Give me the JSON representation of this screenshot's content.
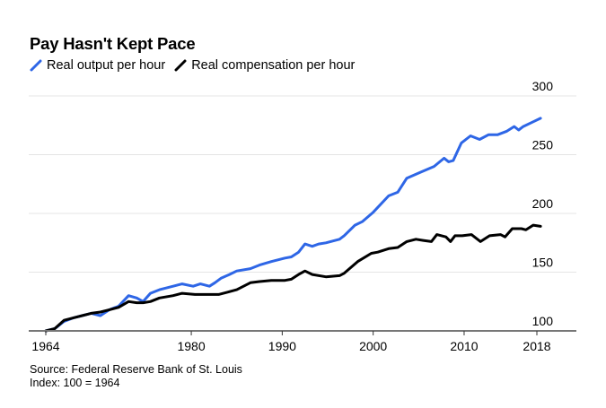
{
  "chart_data": {
    "type": "line",
    "title": "Pay Hasn't Kept Pace",
    "xlabel": "",
    "ylabel": "",
    "xlim": [
      1962.1,
      2022
    ],
    "ylim": [
      100,
      300
    ],
    "x_ticks": [
      1964,
      1980,
      1990,
      2000,
      2010,
      2018
    ],
    "x_tick_labels": [
      "1964",
      "1980",
      "1990",
      "2000",
      "2010",
      "2018"
    ],
    "y_ticks": [
      100,
      150,
      200,
      250,
      300
    ],
    "y_tick_labels": [
      "100",
      "150",
      "200",
      "250",
      "300"
    ],
    "grid": true,
    "y_axis_position": "right",
    "legend_position": "top-left",
    "series": [
      {
        "name": "Real output per hour",
        "color": "#2e66e6",
        "x": [
          1964,
          1965,
          1966,
          1967,
          1968,
          1969,
          1970,
          1971,
          1972,
          1973.1,
          1974,
          1974.7,
          1975.5,
          1976.5,
          1978,
          1979,
          1980.2,
          1981,
          1982,
          1982.6,
          1983.3,
          1984.2,
          1985,
          1986.5,
          1987.5,
          1988.8,
          1990.3,
          1991,
          1991.8,
          1992.5,
          1993.3,
          1994,
          1994.8,
          1996.3,
          1996.8,
          1998,
          1998.8,
          2000,
          2001.7,
          2002.7,
          2003.7,
          2005.2,
          2006.7,
          2007.8,
          2008.3,
          2008.8,
          2009.7,
          2010.7,
          2011.7,
          2012.7,
          2013.7,
          2014.7,
          2015.5,
          2016,
          2016.5,
          2017.6,
          2018.4
        ],
        "values": [
          100,
          102,
          108,
          111,
          113,
          115,
          113,
          118,
          121,
          130,
          128,
          125,
          132,
          135,
          138,
          140,
          138,
          140,
          138,
          141,
          145,
          148,
          151,
          153,
          156,
          159,
          162,
          163,
          167,
          174,
          172,
          174,
          175,
          178,
          181,
          190,
          193,
          201,
          215,
          218,
          230,
          235,
          240,
          247,
          244,
          245,
          260,
          266,
          263,
          267,
          267,
          270,
          274,
          271,
          274,
          278,
          281
        ]
      },
      {
        "name": "Real compensation per hour",
        "color": "#000000",
        "x": [
          1964,
          1965,
          1966,
          1967,
          1968,
          1969,
          1970,
          1971,
          1972,
          1973.1,
          1974,
          1974.7,
          1975.5,
          1976.5,
          1978,
          1979,
          1980.4,
          1982,
          1983,
          1984,
          1985,
          1986.5,
          1987.5,
          1988.8,
          1990.3,
          1991,
          1991.8,
          1992.5,
          1993.3,
          1994.8,
          1996.3,
          1996.8,
          1998.3,
          1999.8,
          2000.5,
          2001.7,
          2002.7,
          2003.7,
          2004.7,
          2005.5,
          2006.4,
          2007,
          2008,
          2008.5,
          2009,
          2009.8,
          2010.8,
          2011.8,
          2012.8,
          2014,
          2014.5,
          2015.3,
          2016.3,
          2016.8,
          2017.6,
          2018.4
        ],
        "values": [
          100,
          102,
          109,
          111,
          113,
          115,
          116,
          118,
          120,
          125,
          124,
          124,
          125,
          128,
          130,
          132,
          131,
          131,
          131,
          133,
          135,
          141,
          142,
          143,
          143,
          144,
          148,
          151,
          148,
          146,
          147,
          149,
          159,
          166,
          167,
          170,
          171,
          176,
          178,
          177,
          176,
          182,
          180,
          176,
          181,
          181,
          182,
          176,
          181,
          182,
          180,
          187,
          187,
          186,
          190,
          189
        ]
      }
    ]
  },
  "header": {
    "title": "Pay Hasn't Kept Pace"
  },
  "legend": [
    {
      "label": "Real output per hour",
      "color": "#2e66e6",
      "icon": "line-swatch-icon"
    },
    {
      "label": "Real compensation per hour",
      "color": "#000000",
      "icon": "line-swatch-icon"
    }
  ],
  "footer": {
    "source": "Source: Federal Reserve Bank of St. Louis",
    "note": "Index: 100 = 1964"
  }
}
